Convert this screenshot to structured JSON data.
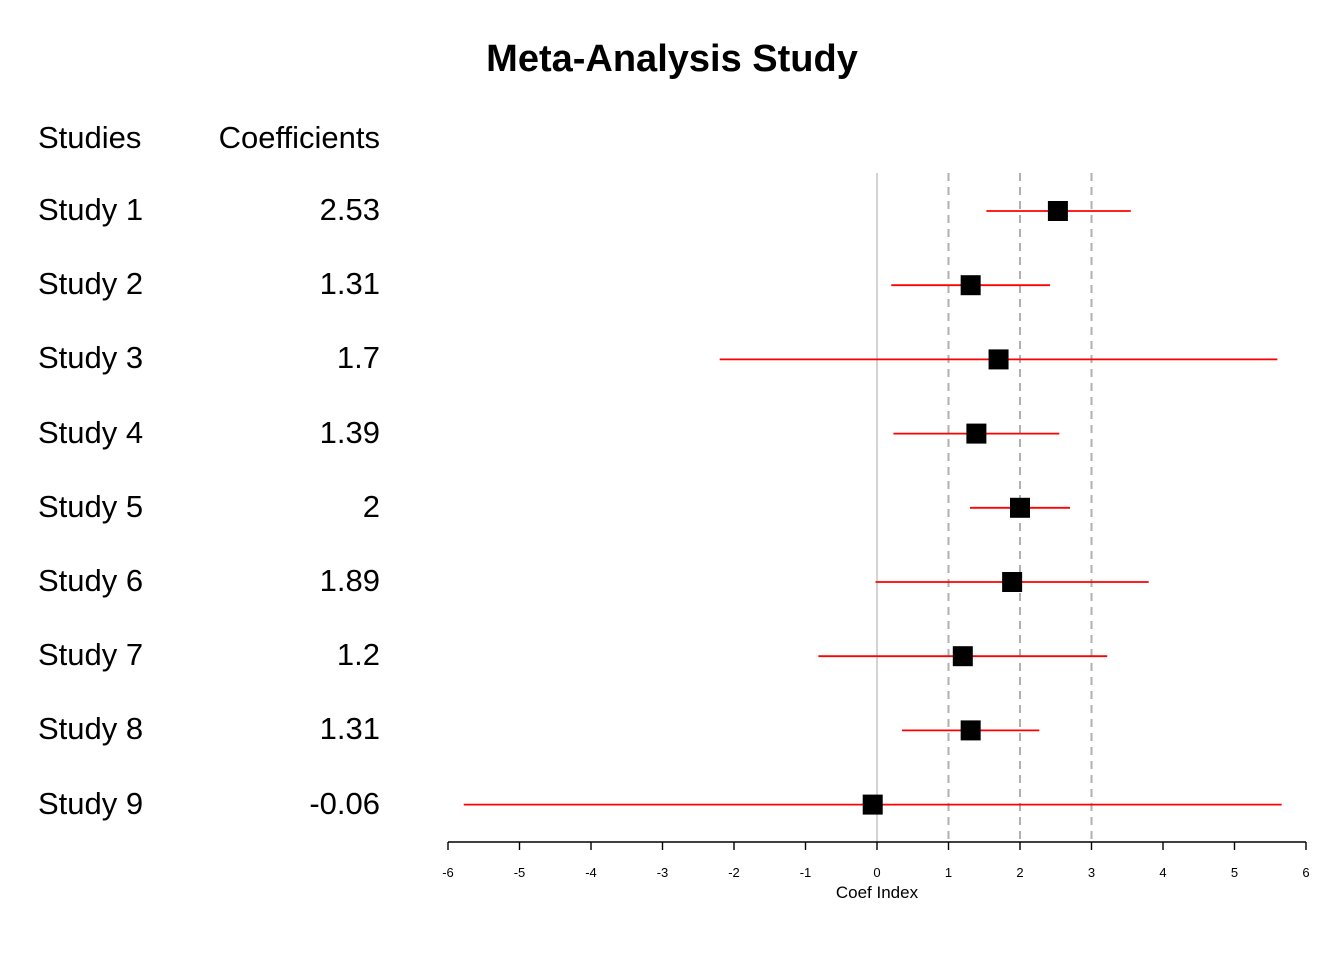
{
  "chart_data": {
    "type": "forest",
    "title": "Meta-Analysis Study",
    "columns": {
      "studies": "Studies",
      "coefficients": "Coefficients"
    },
    "xlabel": "Coef Index",
    "xlim": [
      -6,
      6
    ],
    "xticks": [
      "-6",
      "-5",
      "-4",
      "-3",
      "-2",
      "-1",
      "0",
      "1",
      "2",
      "3",
      "4",
      "5",
      "6"
    ],
    "reference_lines": {
      "solid": [
        0
      ],
      "dashed": [
        1,
        2,
        3
      ]
    },
    "studies": [
      {
        "name": "Study 1",
        "label": "2.53",
        "coef": 2.53,
        "lower": 1.53,
        "upper": 3.55
      },
      {
        "name": "Study 2",
        "label": "1.31",
        "coef": 1.31,
        "lower": 0.2,
        "upper": 2.42
      },
      {
        "name": "Study 3",
        "label": "1.7",
        "coef": 1.7,
        "lower": -2.2,
        "upper": 5.6
      },
      {
        "name": "Study 4",
        "label": "1.39",
        "coef": 1.39,
        "lower": 0.23,
        "upper": 2.55
      },
      {
        "name": "Study 5",
        "label": "2",
        "coef": 2.0,
        "lower": 1.3,
        "upper": 2.7
      },
      {
        "name": "Study 6",
        "label": "1.89",
        "coef": 1.89,
        "lower": -0.02,
        "upper": 3.8
      },
      {
        "name": "Study 7",
        "label": "1.2",
        "coef": 1.2,
        "lower": -0.82,
        "upper": 3.22
      },
      {
        "name": "Study 8",
        "label": "1.31",
        "coef": 1.31,
        "lower": 0.35,
        "upper": 2.27
      },
      {
        "name": "Study 9",
        "label": "-0.06",
        "coef": -0.06,
        "lower": -5.78,
        "upper": 5.66
      }
    ],
    "colors": {
      "ci_line": "#ff0000",
      "point": "#000000",
      "zero_line": "#c8c8c8",
      "dashed_line": "#b0b0b0",
      "axis": "#000000"
    }
  }
}
